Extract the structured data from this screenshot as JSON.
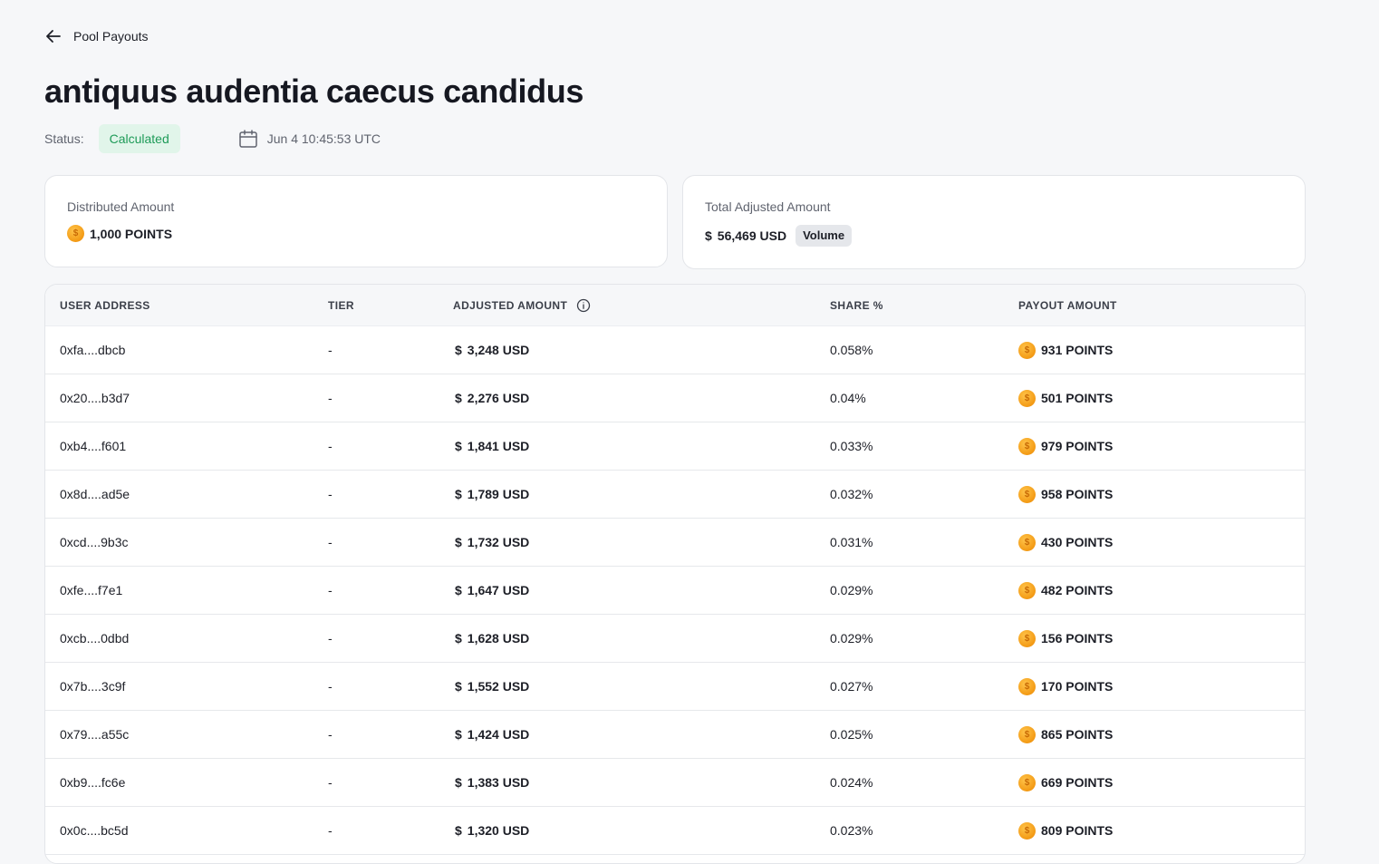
{
  "nav": {
    "back_label": "Pool Payouts"
  },
  "page": {
    "title": "antiquus audentia caecus candidus"
  },
  "status": {
    "label": "Status:",
    "value": "Calculated",
    "date": "Jun 4 10:45:53 UTC"
  },
  "cards": {
    "distributed": {
      "label": "Distributed Amount",
      "value": "1,000 POINTS"
    },
    "adjusted": {
      "label": "Total Adjusted Amount",
      "value": "56,469 USD",
      "badge": "Volume"
    }
  },
  "table": {
    "headers": {
      "address": "USER ADDRESS",
      "tier": "TIER",
      "adjusted": "ADJUSTED AMOUNT",
      "share": "SHARE %",
      "payout": "PAYOUT AMOUNT"
    },
    "rows": [
      {
        "address": "0xfa....dbcb",
        "tier": "-",
        "adjusted": "3,248 USD",
        "share": "0.058%",
        "payout": "931 POINTS"
      },
      {
        "address": "0x20....b3d7",
        "tier": "-",
        "adjusted": "2,276 USD",
        "share": "0.04%",
        "payout": "501 POINTS"
      },
      {
        "address": "0xb4....f601",
        "tier": "-",
        "adjusted": "1,841 USD",
        "share": "0.033%",
        "payout": "979 POINTS"
      },
      {
        "address": "0x8d....ad5e",
        "tier": "-",
        "adjusted": "1,789 USD",
        "share": "0.032%",
        "payout": "958 POINTS"
      },
      {
        "address": "0xcd....9b3c",
        "tier": "-",
        "adjusted": "1,732 USD",
        "share": "0.031%",
        "payout": "430 POINTS"
      },
      {
        "address": "0xfe....f7e1",
        "tier": "-",
        "adjusted": "1,647 USD",
        "share": "0.029%",
        "payout": "482 POINTS"
      },
      {
        "address": "0xcb....0dbd",
        "tier": "-",
        "adjusted": "1,628 USD",
        "share": "0.029%",
        "payout": "156 POINTS"
      },
      {
        "address": "0x7b....3c9f",
        "tier": "-",
        "adjusted": "1,552 USD",
        "share": "0.027%",
        "payout": "170 POINTS"
      },
      {
        "address": "0x79....a55c",
        "tier": "-",
        "adjusted": "1,424 USD",
        "share": "0.025%",
        "payout": "865 POINTS"
      },
      {
        "address": "0xb9....fc6e",
        "tier": "-",
        "adjusted": "1,383 USD",
        "share": "0.024%",
        "payout": "669 POINTS"
      },
      {
        "address": "0x0c....bc5d",
        "tier": "-",
        "adjusted": "1,320 USD",
        "share": "0.023%",
        "payout": "809 POINTS"
      }
    ]
  },
  "icons": {
    "back": "arrow-left-icon",
    "calendar": "calendar-icon",
    "coin": "coin-icon",
    "dollar": "dollar-icon",
    "info": "info-icon"
  }
}
